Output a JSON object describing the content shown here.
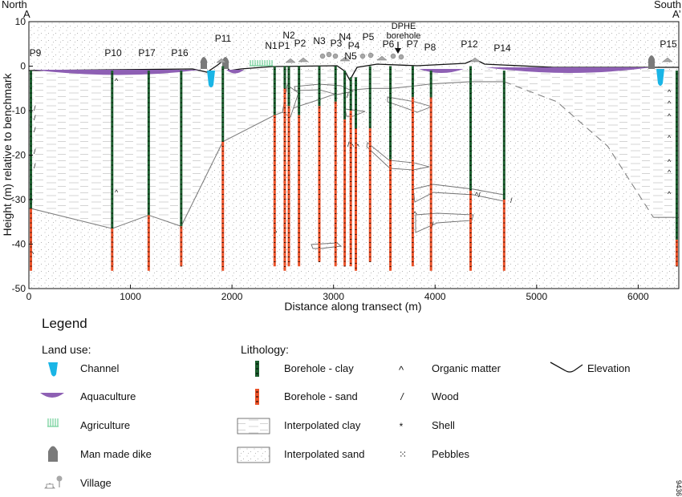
{
  "corners": {
    "left_top": "North",
    "left_bottom": "A",
    "right_top": "South",
    "right_bottom": "A’"
  },
  "axes": {
    "x_title": "Distance along transect (m)",
    "y_title": "Height (m) relative to benchmark",
    "x_ticks": [
      0,
      1000,
      2000,
      3000,
      4000,
      5000,
      6000
    ],
    "y_ticks": [
      10,
      0,
      -10,
      -20,
      -30,
      -40,
      -50
    ],
    "x_range": [
      0,
      6400
    ],
    "y_range": [
      -50,
      10
    ]
  },
  "boreholes": [
    {
      "name": "P9",
      "x": 20,
      "top": -1,
      "bottom": -46,
      "clay_to": -32
    },
    {
      "name": "P10",
      "x": 820,
      "top": -1,
      "bottom": -46,
      "clay_to": -36.5
    },
    {
      "name": "P17",
      "x": 1180,
      "top": -1,
      "bottom": -46,
      "clay_to": -33.5
    },
    {
      "name": "P16",
      "x": 1500,
      "top": -1,
      "bottom": -45,
      "clay_to": -36
    },
    {
      "name": "P11",
      "x": 1910,
      "top": 0,
      "bottom": -46,
      "clay_to": -17
    },
    {
      "name": "N1",
      "x": 2420,
      "top": 0,
      "bottom": -45,
      "clay_to": -11
    },
    {
      "name": "P1",
      "x": 2520,
      "top": 0,
      "bottom": -46,
      "clay_to": -5
    },
    {
      "name": "N2",
      "x": 2560,
      "top": 0,
      "bottom": -45,
      "clay_to": -9
    },
    {
      "name": "P2",
      "x": 2660,
      "top": 0,
      "bottom": -45,
      "clay_to": -11
    },
    {
      "name": "N3",
      "x": 2860,
      "top": 0,
      "bottom": -44,
      "clay_to": -9
    },
    {
      "name": "P3",
      "x": 3020,
      "top": 0,
      "bottom": -45,
      "clay_to": -8
    },
    {
      "name": "N4",
      "x": 3110,
      "top": -1,
      "bottom": -45,
      "clay_to": -12
    },
    {
      "name": "P4",
      "x": 3170,
      "top": -2.5,
      "bottom": -45,
      "clay_to": -10
    },
    {
      "name": "N5",
      "x": 3220,
      "top": -2.5,
      "bottom": -46,
      "clay_to": -14
    },
    {
      "name": "P5",
      "x": 3360,
      "top": 0,
      "bottom": -44,
      "clay_to": -14
    },
    {
      "name": "P6",
      "x": 3560,
      "top": 0,
      "bottom": -46,
      "clay_to": -21
    },
    {
      "name": "P7",
      "x": 3780,
      "top": 0,
      "bottom": -45,
      "clay_to": -7
    },
    {
      "name": "P8",
      "x": 3960,
      "top": -1,
      "bottom": -46,
      "clay_to": -7
    },
    {
      "name": "P12",
      "x": 4350,
      "top": 0,
      "bottom": -46,
      "clay_to": -28
    },
    {
      "name": "P14",
      "x": 4680,
      "top": -1,
      "bottom": -46,
      "clay_to": -30
    },
    {
      "name": "P15",
      "x": 6380,
      "top": -1,
      "bottom": -45,
      "clay_to": -39
    }
  ],
  "extra_labels": {
    "dphe": "DPHE\nborehole"
  },
  "legend": {
    "title": "Legend",
    "land_use_heading": "Land use:",
    "lithology_heading": "Lithology:",
    "land_use": [
      {
        "key": "channel",
        "label": "Channel"
      },
      {
        "key": "aquaculture",
        "label": "Aquaculture"
      },
      {
        "key": "agriculture",
        "label": "Agriculture"
      },
      {
        "key": "dike",
        "label": "Man made dike"
      },
      {
        "key": "village",
        "label": "Village"
      }
    ],
    "lithology": [
      {
        "key": "bh-clay",
        "label": "Borehole - clay"
      },
      {
        "key": "bh-sand",
        "label": "Borehole - sand"
      },
      {
        "key": "int-clay",
        "label": "Interpolated clay"
      },
      {
        "key": "int-sand",
        "label": "Interpolated sand"
      }
    ],
    "symbols": [
      {
        "key": "organic",
        "glyph": "^",
        "label": "Organic matter"
      },
      {
        "key": "wood",
        "glyph": "/",
        "label": "Wood"
      },
      {
        "key": "shell",
        "glyph": "*",
        "label": "Shell"
      },
      {
        "key": "pebbles",
        "glyph": "⁙",
        "label": "Pebbles"
      }
    ],
    "elevation_label": "Elevation"
  },
  "figure_number": "9436",
  "colors": {
    "clay": "#1c5e2e",
    "sand": "#ea5128",
    "channel": "#1ab5e6",
    "aquaculture": "#8e60b4",
    "agriculture": "#6fcf97",
    "dike": "#7a7a7a",
    "village": "#a8a8a8",
    "boundary": "#808080"
  }
}
